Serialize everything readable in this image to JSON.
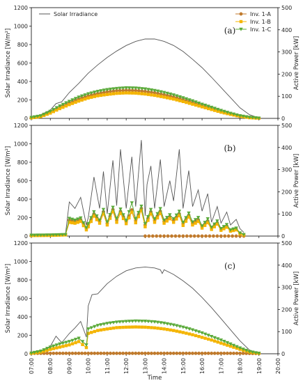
{
  "chart_data": {
    "type": "line",
    "xlabel": "Time",
    "x_ticks": [
      "07:00",
      "08:00",
      "09:00",
      "10:00",
      "11:00",
      "12:00",
      "13:00",
      "14:00",
      "15:00",
      "16:00",
      "17:00",
      "18:00",
      "19:00",
      "20:00"
    ],
    "xlim": [
      7,
      20
    ],
    "left_axis": {
      "label": "Solar Irradiance [W/m²]",
      "ylim": [
        0,
        1200
      ],
      "ticks": [
        "0",
        "200",
        "400",
        "600",
        "800",
        "1000",
        "1200"
      ]
    },
    "right_axis": {
      "label": "Active Power [kW]",
      "ylim": [
        0,
        500
      ],
      "ticks": [
        "0",
        "100",
        "200",
        "300",
        "400",
        "500"
      ]
    },
    "legend": {
      "placement_irradiance": "top-left",
      "placement_inverters": "top-right",
      "entries": [
        {
          "name": "Solar Irradiance",
          "color": "#555555",
          "marker": "line"
        },
        {
          "name": "Inv. 1-A",
          "color": "#c07a2c",
          "marker": "circle"
        },
        {
          "name": "Inv. 1-B",
          "color": "#f4b400",
          "marker": "square"
        },
        {
          "name": "Inv. 1-C",
          "color": "#5aaa3a",
          "marker": "triangle-down"
        }
      ]
    },
    "panels": [
      {
        "label": "(a)",
        "irradiance": {
          "x": [
            7.0,
            7.5,
            8.0,
            8.3,
            8.6,
            9.0,
            9.5,
            10.0,
            10.5,
            11.0,
            11.5,
            12.0,
            12.5,
            13.0,
            13.5,
            14.0,
            14.5,
            15.0,
            15.5,
            16.0,
            16.5,
            17.0,
            17.5,
            18.0,
            18.5,
            19.0
          ],
          "y": [
            8,
            40,
            90,
            160,
            180,
            280,
            380,
            490,
            580,
            660,
            730,
            790,
            835,
            860,
            860,
            835,
            790,
            725,
            640,
            550,
            445,
            335,
            225,
            115,
            40,
            5
          ]
        },
        "inverters": [
          {
            "name": "Inv. 1-A",
            "x": [
              7.0,
              7.5,
              8.0,
              8.5,
              9.0,
              9.5,
              10.0,
              10.5,
              11.0,
              11.5,
              12.0,
              12.5,
              13.0,
              13.5,
              14.0,
              14.5,
              15.0,
              15.5,
              16.0,
              16.5,
              17.0,
              17.5,
              18.0,
              18.5,
              19.0
            ],
            "y": [
              3,
              10,
              28,
              50,
              70,
              88,
              102,
              112,
              120,
              125,
              127,
              126,
              122,
              116,
              107,
              97,
              85,
              72,
              58,
              45,
              32,
              20,
              10,
              4,
              1
            ]
          },
          {
            "name": "Inv. 1-B",
            "x": [
              7.0,
              7.5,
              8.0,
              8.5,
              9.0,
              9.5,
              10.0,
              10.5,
              11.0,
              11.5,
              12.0,
              12.5,
              13.0,
              13.5,
              14.0,
              14.5,
              15.0,
              15.5,
              16.0,
              16.5,
              17.0,
              17.5,
              18.0,
              18.5,
              19.0
            ],
            "y": [
              2,
              8,
              24,
              44,
              62,
              78,
              92,
              102,
              108,
              113,
              115,
              114,
              110,
              104,
              96,
              87,
              76,
              64,
              52,
              40,
              28,
              18,
              9,
              3,
              1
            ]
          },
          {
            "name": "Inv. 1-C",
            "x": [
              7.0,
              7.5,
              8.0,
              8.5,
              9.0,
              9.5,
              10.0,
              10.5,
              11.0,
              11.5,
              12.0,
              12.5,
              13.0,
              13.5,
              14.0,
              14.5,
              15.0,
              15.5,
              16.0,
              16.5,
              17.0,
              17.5,
              18.0,
              18.5,
              19.0
            ],
            "y": [
              4,
              12,
              32,
              56,
              77,
              96,
              111,
              122,
              130,
              135,
              138,
              137,
              133,
              126,
              117,
              106,
              93,
              79,
              64,
              50,
              36,
              23,
              12,
              5,
              1
            ]
          }
        ]
      },
      {
        "label": "(b)",
        "irradiance": {
          "x": [
            7.0,
            8.0,
            8.8,
            9.0,
            9.3,
            9.6,
            9.9,
            10.0,
            10.3,
            10.6,
            10.8,
            11.0,
            11.3,
            11.5,
            11.7,
            12.0,
            12.3,
            12.5,
            12.8,
            13.0,
            13.1,
            13.3,
            13.5,
            13.8,
            14.0,
            14.3,
            14.5,
            14.8,
            15.0,
            15.3,
            15.5,
            15.8,
            16.0,
            16.3,
            16.5,
            16.8,
            17.0,
            17.3,
            17.5,
            17.8,
            18.0,
            18.2
          ],
          "y": [
            10,
            10,
            20,
            370,
            300,
            420,
            120,
            200,
            640,
            300,
            700,
            240,
            820,
            330,
            940,
            300,
            860,
            320,
            1040,
            220,
            560,
            760,
            300,
            830,
            320,
            600,
            380,
            940,
            300,
            710,
            320,
            500,
            270,
            460,
            150,
            320,
            140,
            260,
            120,
            180,
            80,
            40
          ]
        },
        "inverters": [
          {
            "name": "Inv. 1-A",
            "x": [
              7.0,
              8.0,
              8.8,
              9.0,
              9.3,
              9.6,
              9.9,
              10.0,
              10.3,
              10.6,
              10.8,
              11.0,
              11.3,
              11.5,
              11.7,
              12.0,
              12.3,
              12.5,
              12.8,
              13.0,
              13.3,
              13.5,
              13.8,
              14.0,
              14.3,
              14.5,
              14.8,
              15.0,
              15.3,
              15.5,
              15.8,
              16.0,
              16.3,
              16.5,
              16.8,
              17.0,
              17.3,
              17.5,
              17.8,
              18.0,
              18.2
            ],
            "y": [
              3,
              4,
              6,
              72,
              66,
              75,
              34,
              50,
              100,
              66,
              110,
              58,
              120,
              72,
              112,
              64,
              118,
              70,
              125,
              50,
              110,
              70,
              112,
              66,
              86,
              70,
              100,
              56,
              94,
              58,
              74,
              42,
              68,
              36,
              60,
              30,
              46,
              25,
              32,
              12,
              6
            ]
          },
          {
            "name": "Inv. 1-B",
            "x": [
              7.0,
              8.0,
              8.8,
              9.0,
              9.3,
              9.6,
              9.9,
              10.0,
              10.3,
              10.6,
              10.8,
              11.0,
              11.3,
              11.5,
              11.7,
              12.0,
              12.3,
              12.5,
              12.8,
              13.0,
              13.3,
              13.5,
              13.8,
              14.0,
              14.3,
              14.5,
              14.8,
              15.0,
              15.3,
              15.5,
              15.8,
              16.0,
              16.3,
              16.5,
              16.8,
              17.0,
              17.3,
              17.5,
              17.8,
              18.0,
              18.2
            ],
            "y": [
              2,
              3,
              5,
              62,
              58,
              66,
              28,
              42,
              90,
              58,
              100,
              50,
              110,
              62,
              102,
              56,
              108,
              60,
              115,
              42,
              100,
              62,
              102,
              58,
              78,
              62,
              92,
              48,
              86,
              50,
              66,
              36,
              60,
              30,
              54,
              26,
              40,
              22,
              28,
              10,
              5
            ]
          },
          {
            "name": "Inv. 1-C",
            "x": [
              7.0,
              8.0,
              8.8,
              9.0,
              9.3,
              9.6,
              9.9,
              10.0,
              10.3,
              10.6,
              10.8,
              11.0,
              11.3,
              11.5,
              11.7,
              12.0,
              12.3,
              12.5,
              12.8,
              13.0,
              13.3,
              13.5,
              13.8,
              14.0,
              14.3,
              14.5,
              14.8,
              15.0,
              15.3,
              15.5,
              15.8,
              16.0,
              16.3,
              16.5,
              16.8,
              17.0,
              17.3,
              17.5,
              17.8,
              18.0,
              18.2
            ],
            "y": [
              4,
              5,
              7,
              80,
              72,
              82,
              38,
              56,
              110,
              72,
              120,
              64,
              130,
              80,
              122,
              70,
              150,
              78,
              135,
              56,
              120,
              78,
              124,
              72,
              96,
              78,
              112,
              62,
              104,
              64,
              84,
              46,
              78,
              40,
              68,
              34,
              52,
              28,
              36,
              14,
              7
            ]
          }
        ],
        "offline": {
          "name": "Inv. 1-A",
          "x_from": 13.0,
          "x_to": 18.2,
          "y": 0
        }
      },
      {
        "label": "(c)",
        "irradiance": {
          "x": [
            7.0,
            7.5,
            8.0,
            8.3,
            8.6,
            9.0,
            9.3,
            9.6,
            9.9,
            10.0,
            10.2,
            10.5,
            11.0,
            11.5,
            12.0,
            12.5,
            13.0,
            13.5,
            13.8,
            13.9,
            14.0,
            14.5,
            15.0,
            15.5,
            16.0,
            16.5,
            17.0,
            17.5,
            18.0,
            18.5,
            19.0
          ],
          "y": [
            10,
            30,
            80,
            190,
            120,
            220,
            280,
            350,
            180,
            520,
            640,
            650,
            760,
            840,
            900,
            930,
            940,
            930,
            910,
            870,
            910,
            860,
            790,
            710,
            610,
            500,
            380,
            260,
            140,
            40,
            8
          ]
        },
        "inverters": [
          {
            "name": "Inv. 1-A",
            "x": [
              7.0,
              10.0,
              12.0,
              14.0,
              16.0,
              18.0,
              19.0
            ],
            "y": [
              2,
              2,
              2,
              2,
              2,
              2,
              1
            ]
          },
          {
            "name": "Inv. 1-B",
            "x": [
              7.0,
              7.5,
              8.0,
              8.5,
              9.0,
              9.5,
              9.9,
              10.0,
              10.5,
              11.0,
              11.5,
              12.0,
              12.5,
              13.0,
              13.5,
              14.0,
              14.5,
              15.0,
              15.5,
              16.0,
              16.5,
              17.0,
              17.5,
              18.0,
              18.5,
              19.0
            ],
            "y": [
              2,
              8,
              20,
              30,
              40,
              55,
              28,
              92,
              105,
              112,
              118,
              120,
              121,
              120,
              117,
              112,
              105,
              96,
              86,
              74,
              62,
              48,
              34,
              20,
              8,
              2
            ]
          },
          {
            "name": "Inv. 1-C",
            "x": [
              7.0,
              7.5,
              8.0,
              8.5,
              9.0,
              9.5,
              9.9,
              10.0,
              10.5,
              11.0,
              11.5,
              12.0,
              12.5,
              13.0,
              13.5,
              14.0,
              14.5,
              15.0,
              15.5,
              16.0,
              16.5,
              17.0,
              17.5,
              18.0,
              18.5,
              19.0
            ],
            "y": [
              3,
              12,
              30,
              44,
              55,
              70,
              40,
              112,
              128,
              137,
              143,
              146,
              148,
              147,
              144,
              138,
              130,
              120,
              108,
              94,
              78,
              62,
              44,
              26,
              10,
              2
            ]
          }
        ]
      }
    ]
  }
}
